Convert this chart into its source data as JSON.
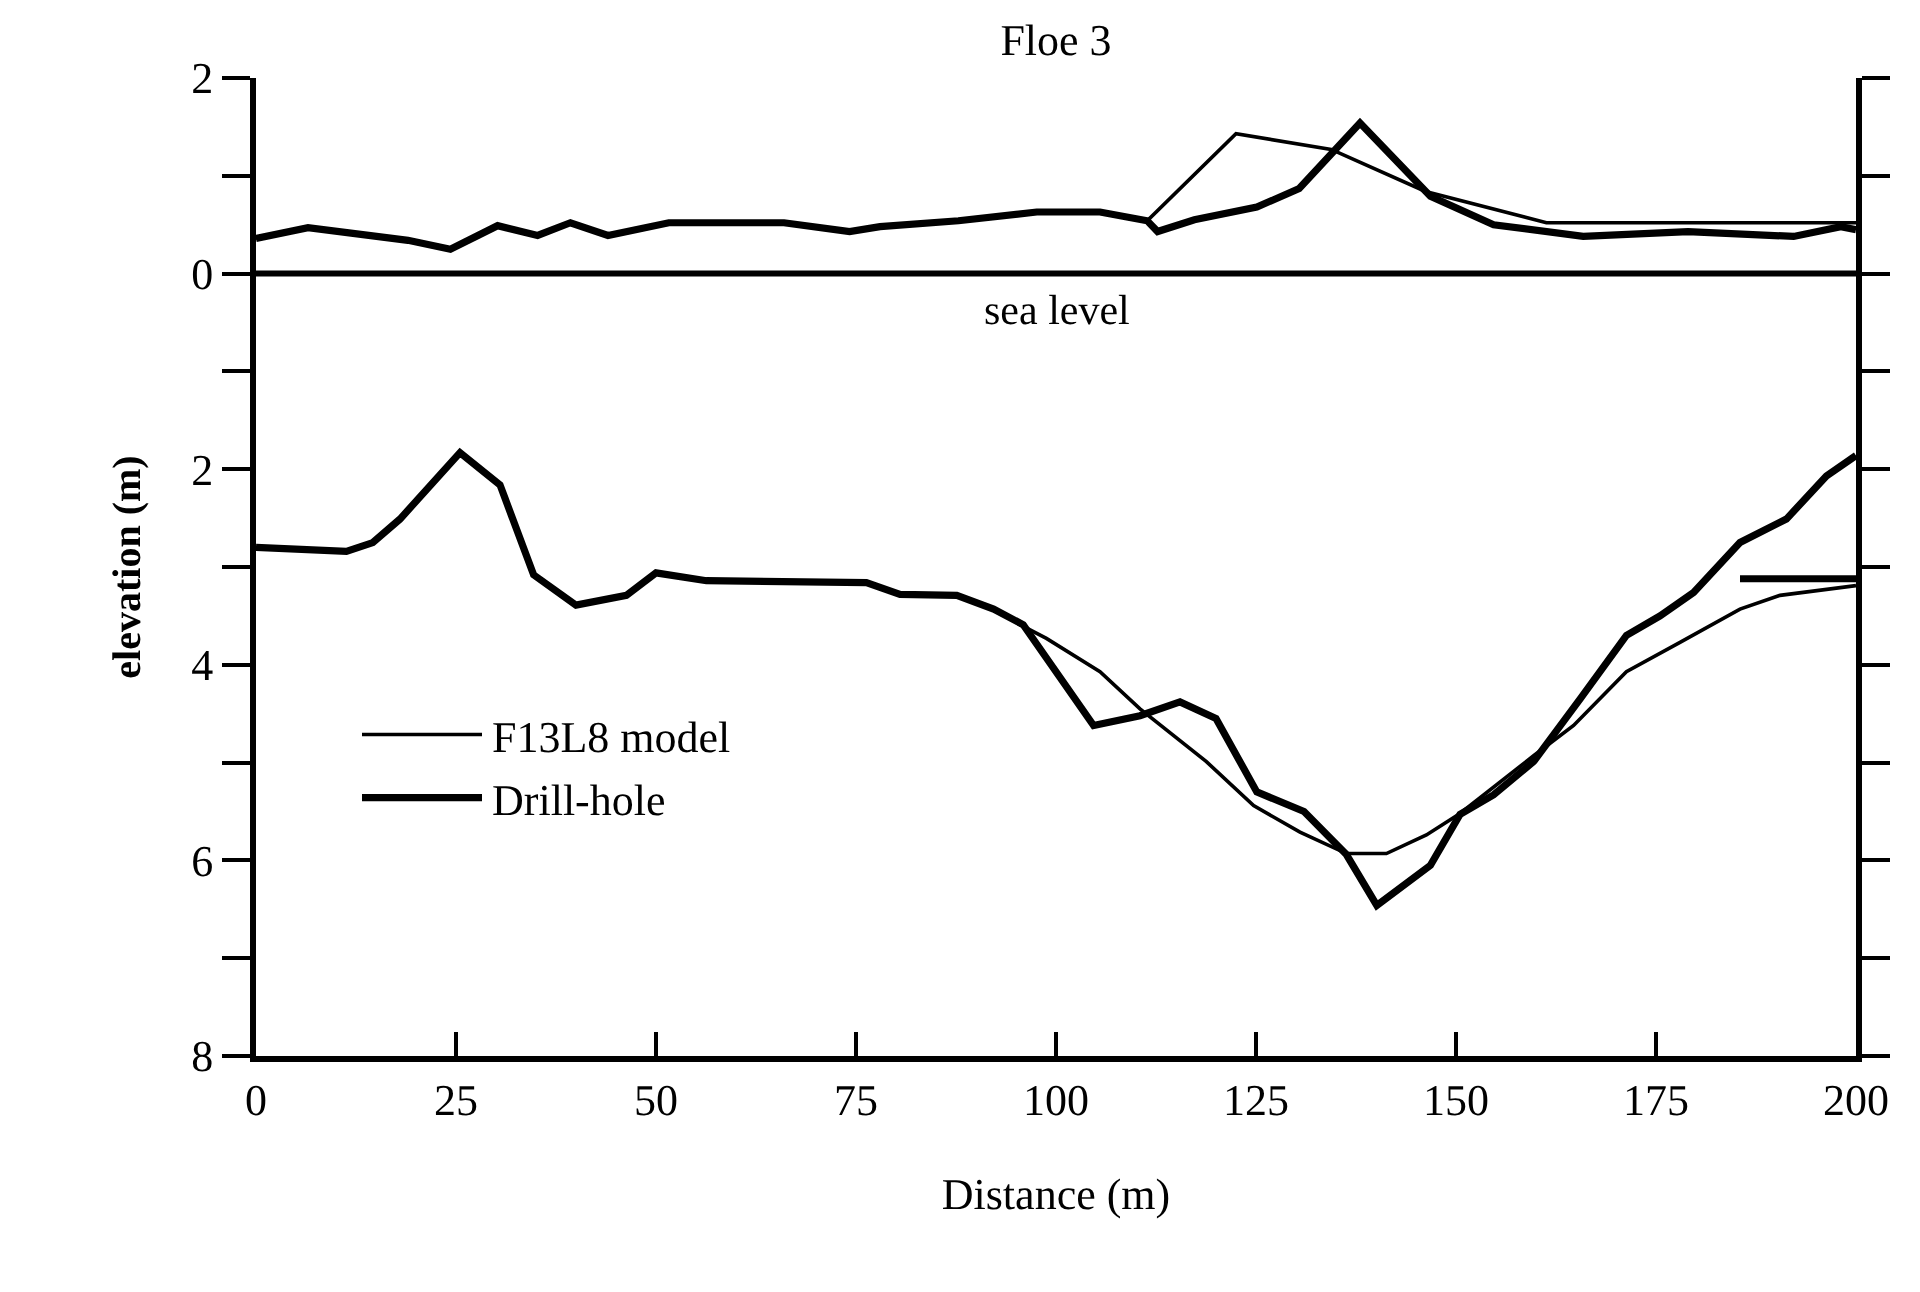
{
  "chart_data": {
    "type": "line",
    "title": "Floe 3",
    "xlabel": "Distance (m)",
    "ylabel": "elevation (m)",
    "series": [
      {
        "name": "F13L8 model",
        "color": "#000000",
        "x": [
          0,
          6.5,
          19,
          24.3,
          30.2,
          35.2,
          39.3,
          44,
          51.6,
          66,
          74.2,
          78,
          87.8,
          97.6,
          105.5,
          111.4,
          122.5,
          134.4,
          146.2,
          161.3,
          200
        ],
        "values": [
          0.36,
          0.47,
          0.34,
          0.25,
          0.49,
          0.39,
          0.52,
          0.39,
          0.52,
          0.52,
          0.43,
          0.48,
          0.54,
          0.63,
          0.63,
          0.54,
          1.43,
          1.27,
          0.84,
          0.52,
          0.52
        ]
      },
      {
        "color": "#000000",
        "x": [
          0,
          11.3,
          14.6,
          18,
          25.5,
          30.5,
          34.7,
          40,
          46.3,
          50,
          56.3,
          76.3,
          80.5,
          87.6,
          92.2,
          95.5,
          98.8,
          105.5,
          110.5,
          118.8,
          124.7,
          130.5,
          136.3,
          141.3,
          146.3,
          150.5,
          159.7,
          164.7,
          171.3,
          178,
          185.5,
          190.5,
          200
        ],
        "values": [
          -2.8,
          -2.84,
          -2.75,
          -2.51,
          -1.83,
          -2.16,
          -3.08,
          -3.39,
          -3.29,
          -3.06,
          -3.14,
          -3.16,
          -3.28,
          -3.29,
          -3.43,
          -3.59,
          -3.73,
          -4.07,
          -4.45,
          -4.99,
          -5.44,
          -5.71,
          -5.93,
          -5.93,
          -5.74,
          -5.52,
          -4.93,
          -4.62,
          -4.07,
          -3.77,
          -3.43,
          -3.29,
          -3.19
        ]
      },
      {
        "name": "Drill-hole",
        "color": "#000000",
        "x": [
          0,
          6.5,
          19,
          24.3,
          30.2,
          35.2,
          39.3,
          44,
          51.6,
          66,
          74.2,
          78,
          87.8,
          97.6,
          105.5,
          111.4,
          112.7,
          117.3,
          125.1,
          130.4,
          138,
          146.8,
          154.7,
          165.9,
          179,
          192.2,
          198.1,
          200
        ],
        "values": [
          0.36,
          0.47,
          0.34,
          0.25,
          0.49,
          0.39,
          0.52,
          0.39,
          0.52,
          0.52,
          0.43,
          0.48,
          0.54,
          0.63,
          0.63,
          0.54,
          0.43,
          0.55,
          0.68,
          0.87,
          1.54,
          0.79,
          0.5,
          0.38,
          0.43,
          0.38,
          0.48,
          0.45
        ]
      },
      {
        "color": "#000000",
        "x": [
          0,
          11.3,
          14.6,
          18,
          25.5,
          30.5,
          34.7,
          40,
          46.3,
          50,
          56.3,
          76.3,
          80.5,
          87.6,
          92.2,
          95.9,
          104.7,
          110.5,
          115.5,
          120,
          125.1,
          131,
          136.3,
          140.1,
          146.8,
          150.5,
          154.7,
          159.7,
          165.5,
          171.3,
          175.5,
          179.7,
          185.5,
          191.3,
          196.3,
          200
        ],
        "values": [
          -2.8,
          -2.84,
          -2.75,
          -2.51,
          -1.83,
          -2.16,
          -3.08,
          -3.39,
          -3.29,
          -3.06,
          -3.14,
          -3.16,
          -3.28,
          -3.29,
          -3.43,
          -3.59,
          -4.62,
          -4.52,
          -4.38,
          -4.55,
          -5.3,
          -5.5,
          -5.94,
          -6.46,
          -6.05,
          -5.53,
          -5.33,
          -4.99,
          -4.35,
          -3.7,
          -3.5,
          -3.26,
          -2.75,
          -2.51,
          -2.07,
          -1.86
        ]
      },
      {
        "color": "#000000",
        "x": [
          185.5,
          200
        ],
        "values": [
          -3.12,
          -3.12
        ]
      }
    ],
    "xlim": [
      0,
      200
    ],
    "xticks": [
      0,
      25,
      50,
      75,
      100,
      125,
      150,
      175,
      200
    ],
    "ylim": [
      -8,
      2
    ],
    "yticks": [
      2,
      {
        "value": 1,
        "label": null
      },
      0,
      {
        "value": -1,
        "label": null
      },
      {
        "value": -2,
        "label": "2"
      },
      {
        "value": -3,
        "label": null
      },
      {
        "value": -4,
        "label": "4"
      },
      {
        "value": -5,
        "label": null
      },
      {
        "value": -6,
        "label": "6"
      },
      {
        "value": -7,
        "label": null
      },
      {
        "value": -8,
        "label": "8"
      }
    ],
    "ref_lines": [
      {
        "axis": "y",
        "value": 0,
        "label": "sea level",
        "color": "#000000"
      }
    ],
    "legend": "bottom left",
    "marker": "none",
    "line_style": "solid"
  }
}
